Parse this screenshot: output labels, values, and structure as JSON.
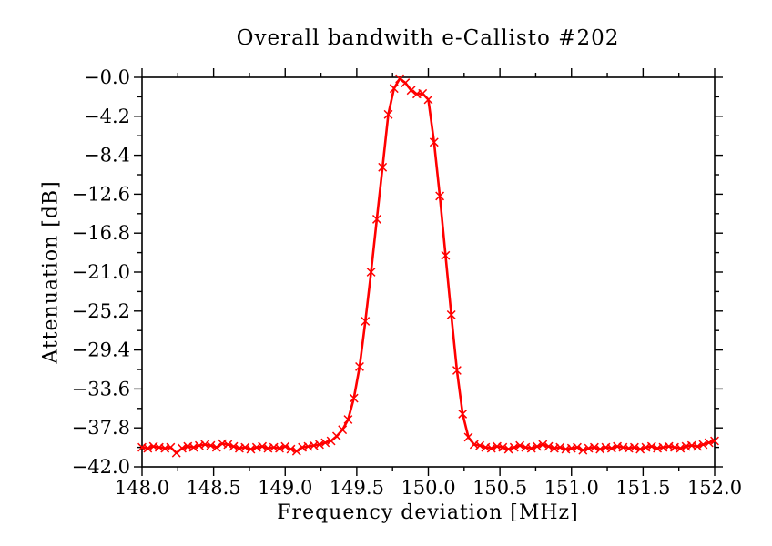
{
  "page": {
    "background": "#ffffff"
  },
  "chart_data": {
    "type": "line",
    "title": "Overall bandwith e-Callisto #202",
    "xlabel": "Frequency deviation [MHz]",
    "ylabel": "Attenuation [dB]",
    "xlim": [
      148.0,
      152.0
    ],
    "ylim": [
      -42.0,
      0.0
    ],
    "grid": false,
    "legend": "none",
    "axis_color": "#000000",
    "line_color": "#ff0000",
    "marker": "x",
    "x_major_ticks": [
      148.0,
      148.5,
      149.0,
      149.5,
      150.0,
      150.5,
      151.0,
      151.5,
      152.0
    ],
    "x_tick_labels": [
      "148.0",
      "148.5",
      "149.0",
      "149.5",
      "150.0",
      "150.5",
      "151.0",
      "151.5",
      "152.0"
    ],
    "x_minor_step": 0.25,
    "y_major_ticks": [
      0.0,
      -4.2,
      -8.4,
      -12.6,
      -16.8,
      -21.0,
      -25.2,
      -29.4,
      -33.6,
      -37.8,
      -42.0
    ],
    "y_tick_labels": [
      "−0.0",
      "−4.2",
      "−8.4",
      "−12.6",
      "−16.8",
      "−21.0",
      "−25.2",
      "−29.4",
      "−33.6",
      "−37.8",
      "−42.0"
    ],
    "y_minor_step": 2.1,
    "series": [
      {
        "name": "attenuation",
        "x": [
          148.0,
          148.04,
          148.08,
          148.12,
          148.16,
          148.2,
          148.24,
          148.28,
          148.32,
          148.36,
          148.4,
          148.44,
          148.48,
          148.52,
          148.56,
          148.6,
          148.64,
          148.68,
          148.72,
          148.76,
          148.8,
          148.84,
          148.88,
          148.92,
          148.96,
          149.0,
          149.04,
          149.08,
          149.12,
          149.16,
          149.2,
          149.24,
          149.28,
          149.32,
          149.36,
          149.4,
          149.44,
          149.48,
          149.52,
          149.56,
          149.6,
          149.64,
          149.68,
          149.72,
          149.76,
          149.8,
          149.84,
          149.88,
          149.92,
          149.96,
          150.0,
          150.04,
          150.08,
          150.12,
          150.16,
          150.2,
          150.24,
          150.28,
          150.32,
          150.36,
          150.4,
          150.44,
          150.48,
          150.52,
          150.56,
          150.6,
          150.64,
          150.68,
          150.72,
          150.76,
          150.8,
          150.84,
          150.88,
          150.92,
          150.96,
          151.0,
          151.04,
          151.08,
          151.12,
          151.16,
          151.2,
          151.24,
          151.28,
          151.32,
          151.36,
          151.4,
          151.44,
          151.48,
          151.52,
          151.56,
          151.6,
          151.64,
          151.68,
          151.72,
          151.76,
          151.8,
          151.84,
          151.88,
          151.92,
          151.96,
          152.0
        ],
        "y": [
          -39.9,
          -40.0,
          -39.8,
          -39.9,
          -40.0,
          -39.9,
          -40.5,
          -40.0,
          -39.8,
          -39.9,
          -39.7,
          -39.6,
          -39.7,
          -39.9,
          -39.5,
          -39.6,
          -39.8,
          -40.0,
          -39.9,
          -40.1,
          -39.9,
          -39.8,
          -40.0,
          -39.9,
          -40.0,
          -39.8,
          -40.1,
          -40.3,
          -39.9,
          -39.8,
          -39.7,
          -39.6,
          -39.4,
          -39.2,
          -38.7,
          -38.0,
          -36.9,
          -34.6,
          -31.2,
          -26.3,
          -21.0,
          -15.3,
          -9.7,
          -4.0,
          -1.2,
          -0.15,
          -0.6,
          -1.4,
          -1.8,
          -1.75,
          -2.4,
          -7.0,
          -12.8,
          -19.2,
          -25.6,
          -31.6,
          -36.3,
          -38.8,
          -39.6,
          -39.7,
          -39.9,
          -40.0,
          -39.8,
          -39.9,
          -40.1,
          -39.9,
          -39.7,
          -39.9,
          -40.0,
          -39.8,
          -39.6,
          -39.8,
          -40.0,
          -39.9,
          -40.1,
          -40.0,
          -39.9,
          -40.2,
          -40.0,
          -39.9,
          -40.1,
          -39.9,
          -40.0,
          -39.8,
          -39.9,
          -40.0,
          -39.9,
          -40.1,
          -39.9,
          -39.8,
          -40.0,
          -39.9,
          -39.8,
          -39.9,
          -40.0,
          -39.8,
          -39.7,
          -39.8,
          -39.6,
          -39.4,
          -39.2
        ]
      }
    ]
  }
}
